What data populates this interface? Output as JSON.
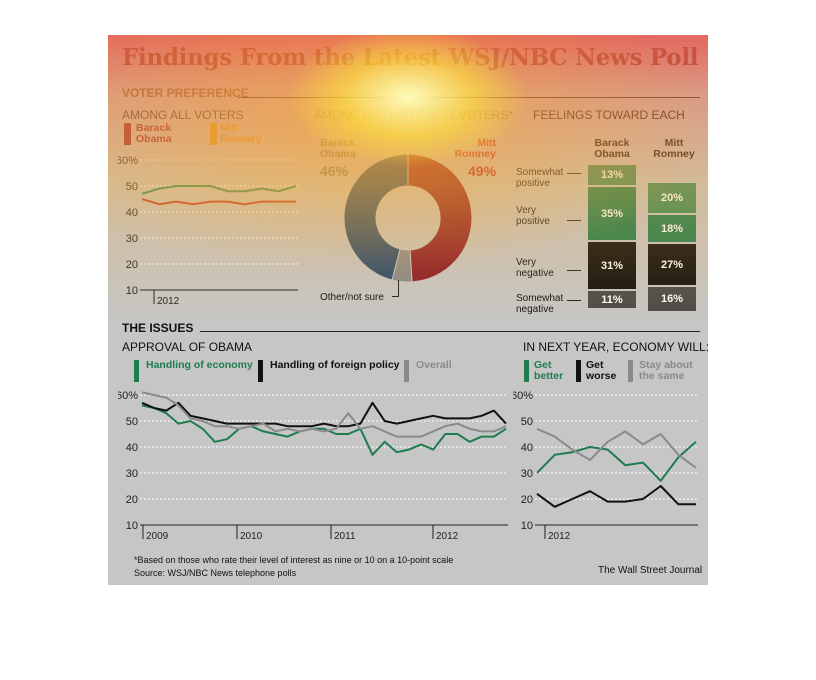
{
  "title": "Findings From the Latest WSJ/NBC News Poll",
  "sections": {
    "voter_preference": "VOTER PREFERENCE",
    "issues": "THE ISSUES"
  },
  "colors": {
    "obama": "#2b4c6e",
    "romney": "#8a1c28",
    "green": "#1e7d4f",
    "black": "#111111",
    "gray": "#8a8a8a"
  },
  "chart_data": [
    {
      "id": "all_voters",
      "type": "line",
      "title": "AMONG ALL VOTERS",
      "legend": [
        "Barack Obama",
        "Mitt Romney"
      ],
      "ylim": [
        10,
        60
      ],
      "yticks": [
        "60%",
        "50",
        "40",
        "30",
        "20",
        "10"
      ],
      "xlabels": [
        "2012"
      ],
      "series": [
        {
          "name": "Barack Obama",
          "color": "#2e8b57",
          "values": [
            47,
            49,
            50,
            50,
            50,
            48,
            48,
            49,
            48,
            50
          ]
        },
        {
          "name": "Mitt Romney",
          "color": "#c0392b",
          "values": [
            45,
            43,
            44,
            43,
            44,
            44,
            43,
            44,
            44,
            44
          ]
        }
      ]
    },
    {
      "id": "high_interest",
      "type": "pie",
      "title": "AMONG HIGH-INTEREST VOTERS*",
      "slices": [
        {
          "label": "Mitt Romney",
          "value": 49,
          "display": "49%",
          "color": "#8a1c28"
        },
        {
          "label": "Other/not sure",
          "value": 5,
          "display": "",
          "color": "#8a8a8a"
        },
        {
          "label": "Barack Obama",
          "value": 46,
          "display": "46%",
          "color": "#2b4c6e"
        }
      ]
    },
    {
      "id": "feelings",
      "type": "bar",
      "title": "FEELINGS TOWARD EACH",
      "categories": [
        "Somewhat positive",
        "Very positive",
        "Very negative",
        "Somewhat negative"
      ],
      "columns": [
        "Barack Obama",
        "Mitt Romney"
      ],
      "series": [
        {
          "name": "Barack Obama",
          "values": [
            13,
            35,
            31,
            11
          ],
          "labels": [
            "13%",
            "35%",
            "31%",
            "11%"
          ]
        },
        {
          "name": "Mitt Romney",
          "values": [
            20,
            18,
            27,
            16
          ],
          "labels": [
            "20%",
            "18%",
            "27%",
            "16%"
          ]
        }
      ]
    },
    {
      "id": "approval",
      "type": "line",
      "title": "APPROVAL OF OBAMA",
      "legend": [
        "Handling of economy",
        "Handling of foreign policy",
        "Overall"
      ],
      "ylim": [
        10,
        60
      ],
      "yticks": [
        "60%",
        "50",
        "40",
        "30",
        "20",
        "10"
      ],
      "xlabels": [
        "2009",
        "2010",
        "2011",
        "2012"
      ],
      "series": [
        {
          "name": "Handling of economy",
          "color": "#1e7d4f",
          "values": [
            56,
            55,
            53,
            49,
            50,
            47,
            42,
            43,
            47,
            48,
            46,
            45,
            44,
            46,
            47,
            47,
            45,
            45,
            47,
            37,
            42,
            38,
            39,
            41,
            39,
            45,
            45,
            42,
            44,
            44,
            47
          ]
        },
        {
          "name": "Handling of foreign policy",
          "color": "#111111",
          "values": [
            57,
            55,
            54,
            57,
            52,
            51,
            50,
            49,
            49,
            49,
            49,
            49,
            48,
            48,
            48,
            49,
            48,
            48,
            49,
            57,
            50,
            49,
            50,
            51,
            52,
            51,
            51,
            51,
            52,
            54,
            49
          ]
        },
        {
          "name": "Overall",
          "color": "#8a8a8a",
          "values": [
            61,
            60,
            59,
            56,
            51,
            50,
            48,
            48,
            47,
            48,
            49,
            46,
            47,
            46,
            47,
            46,
            47,
            53,
            47,
            48,
            46,
            44,
            44,
            44,
            46,
            48,
            49,
            47,
            46,
            46,
            48
          ]
        }
      ]
    },
    {
      "id": "economy",
      "type": "line",
      "title": "IN NEXT YEAR, ECONOMY WILL:",
      "legend": [
        "Get better",
        "Get worse",
        "Stay about the same"
      ],
      "ylim": [
        10,
        60
      ],
      "yticks": [
        "60%",
        "50",
        "40",
        "30",
        "20",
        "10"
      ],
      "xlabels": [
        "2012"
      ],
      "series": [
        {
          "name": "Get better",
          "color": "#1e7d4f",
          "values": [
            30,
            37,
            38,
            40,
            39,
            33,
            34,
            27,
            36,
            42
          ]
        },
        {
          "name": "Get worse",
          "color": "#111111",
          "values": [
            22,
            17,
            20,
            23,
            19,
            19,
            20,
            25,
            18,
            18
          ]
        },
        {
          "name": "Stay about the same",
          "color": "#8a8a8a",
          "values": [
            47,
            44,
            39,
            35,
            42,
            46,
            41,
            45,
            37,
            32
          ]
        }
      ]
    }
  ],
  "footnote": "*Based on those who rate their level of interest as nine or 10 on a 10-point scale",
  "source": "Source: WSJ/NBC News telephone polls",
  "credit": "The Wall Street Journal"
}
